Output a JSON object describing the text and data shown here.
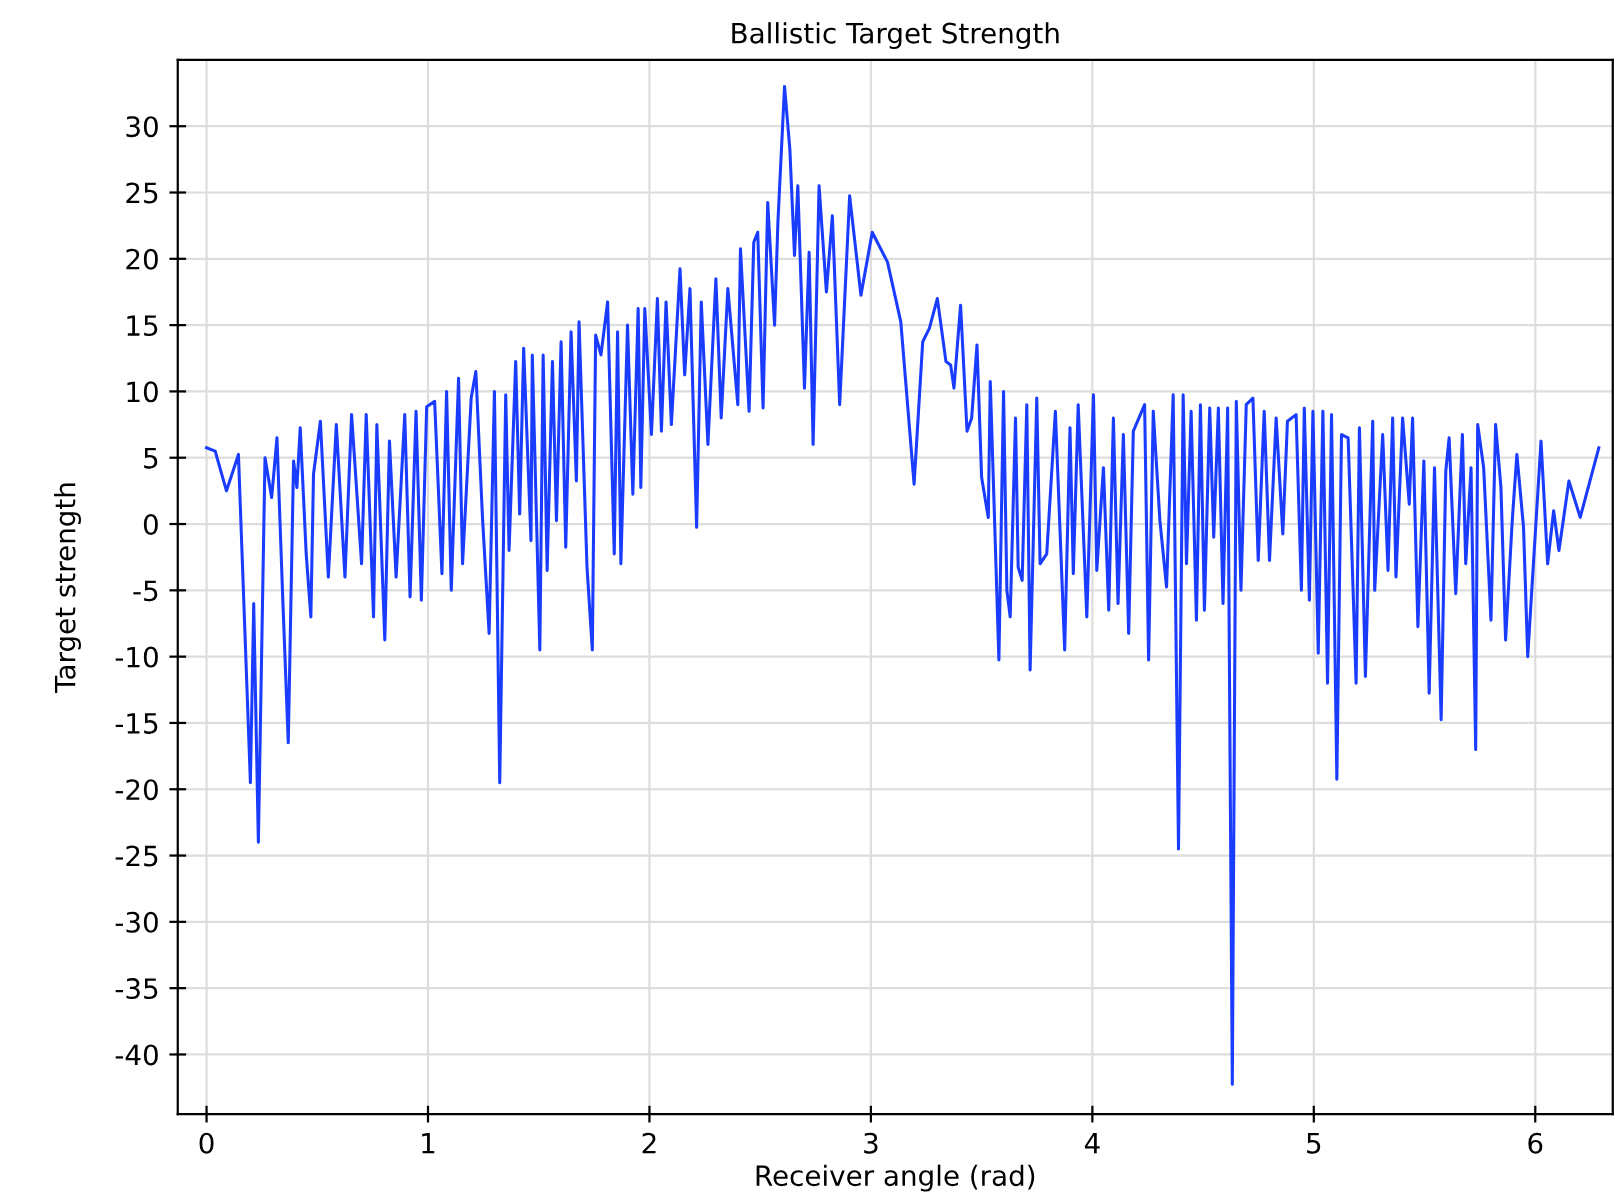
{
  "chart_data": {
    "type": "line",
    "title": "Ballistic Target Strength",
    "xlabel": "Receiver angle (rad)",
    "ylabel": "Target strength",
    "xlim": [
      -0.13,
      6.35
    ],
    "ylim": [
      -44.5,
      35
    ],
    "xticks": [
      0,
      1,
      2,
      3,
      4,
      5,
      6
    ],
    "yticks": [
      -40,
      -35,
      -30,
      -25,
      -20,
      -15,
      -10,
      -5,
      0,
      5,
      10,
      15,
      20,
      25,
      30
    ],
    "grid": true,
    "line_style": "solid",
    "series": [
      {
        "color": "#1a3cff",
        "x": [
          0,
          0.039,
          0.09,
          0.144,
          0.198,
          0.213,
          0.234,
          0.264,
          0.294,
          0.318,
          0.345,
          0.369,
          0.393,
          0.408,
          0.423,
          0.45,
          0.471,
          0.483,
          0.514,
          0.55,
          0.586,
          0.625,
          0.655,
          0.7,
          0.721,
          0.754,
          0.769,
          0.805,
          0.826,
          0.856,
          0.895,
          0.919,
          0.946,
          0.97,
          0.994,
          1.03,
          1.063,
          1.084,
          1.105,
          1.138,
          1.156,
          1.195,
          1.216,
          1.246,
          1.276,
          1.3,
          1.324,
          1.351,
          1.366,
          1.396,
          1.414,
          1.432,
          1.465,
          1.471,
          1.505,
          1.52,
          1.538,
          1.562,
          1.58,
          1.601,
          1.622,
          1.646,
          1.67,
          1.682,
          1.718,
          1.742,
          1.757,
          1.781,
          1.811,
          1.841,
          1.856,
          1.871,
          1.901,
          1.925,
          1.949,
          1.961,
          1.979,
          2.009,
          2.036,
          2.054,
          2.075,
          2.099,
          2.138,
          2.159,
          2.183,
          2.213,
          2.234,
          2.264,
          2.3,
          2.324,
          2.354,
          2.399,
          2.411,
          2.45,
          2.471,
          2.489,
          2.513,
          2.534,
          2.565,
          2.58,
          2.61,
          2.634,
          2.655,
          2.67,
          2.7,
          2.721,
          2.739,
          2.766,
          2.799,
          2.826,
          2.859,
          2.904,
          2.955,
          3.006,
          3.075,
          3.135,
          3.195,
          3.234,
          3.264,
          3.3,
          3.339,
          3.36,
          3.375,
          3.405,
          3.434,
          3.455,
          3.479,
          3.5,
          3.53,
          3.539,
          3.578,
          3.599,
          3.614,
          3.629,
          3.653,
          3.665,
          3.683,
          3.704,
          3.719,
          3.749,
          3.764,
          3.794,
          3.833,
          3.875,
          3.899,
          3.914,
          3.936,
          3.975,
          4.005,
          4.02,
          4.05,
          4.074,
          4.095,
          4.116,
          4.14,
          4.164,
          4.185,
          4.236,
          4.254,
          4.275,
          4.305,
          4.335,
          4.365,
          4.389,
          4.41,
          4.425,
          4.446,
          4.47,
          4.488,
          4.506,
          4.53,
          4.548,
          4.569,
          4.59,
          4.611,
          4.632,
          4.65,
          4.671,
          4.695,
          4.725,
          4.749,
          4.776,
          4.8,
          4.83,
          4.86,
          4.881,
          4.92,
          4.944,
          4.957,
          4.98,
          4.996,
          5.02,
          5.041,
          5.062,
          5.08,
          5.104,
          5.125,
          5.155,
          5.191,
          5.206,
          5.233,
          5.266,
          5.275,
          5.311,
          5.335,
          5.356,
          5.371,
          5.401,
          5.431,
          5.446,
          5.47,
          5.497,
          5.521,
          5.545,
          5.575,
          5.596,
          5.611,
          5.641,
          5.671,
          5.686,
          5.71,
          5.731,
          5.74,
          5.767,
          5.8,
          5.821,
          5.845,
          5.866,
          5.896,
          5.917,
          5.947,
          5.966,
          5.987,
          6.026,
          6.056,
          6.083,
          6.107,
          6.152,
          6.203,
          6.287
        ],
        "values": [
          5.75,
          5.5,
          2.5,
          5.25,
          -19.5,
          -6,
          -24,
          5,
          2,
          6.5,
          -6,
          -16.5,
          4.75,
          2.75,
          7.25,
          -2.25,
          -7,
          3.75,
          7.75,
          -4,
          7.5,
          -4,
          8.25,
          -3,
          8.25,
          -7,
          7.5,
          -8.75,
          6.25,
          -4,
          8.25,
          -5.5,
          8.5,
          -5.75,
          8.85,
          9.25,
          -3.75,
          10,
          -5,
          11,
          -3,
          9.5,
          11.5,
          0.5,
          -8.25,
          10,
          -19.5,
          9.75,
          -2,
          12.25,
          0.75,
          13.25,
          -1.25,
          12.75,
          -9.5,
          12.75,
          -3.5,
          12.25,
          0.25,
          13.75,
          -1.75,
          14.5,
          3.25,
          15.25,
          -3.25,
          -9.5,
          14.25,
          12.75,
          16.75,
          -2.25,
          14.5,
          -3,
          15,
          2.25,
          16.25,
          2.75,
          16.25,
          6.75,
          17,
          7,
          16.75,
          7.5,
          19.25,
          11.25,
          17.75,
          -0.25,
          16.75,
          6,
          18.5,
          8,
          17.75,
          9,
          20.75,
          8.5,
          21.25,
          22,
          8.75,
          24.25,
          15,
          22.75,
          33,
          28.25,
          20.25,
          25.5,
          10.25,
          20.5,
          6,
          25.5,
          17.5,
          23.25,
          9,
          24.75,
          17.25,
          22,
          19.75,
          15.25,
          3,
          13.75,
          14.75,
          17,
          12.25,
          12,
          10.25,
          16.5,
          7,
          8,
          13.5,
          3.5,
          0.5,
          10.75,
          -10.25,
          10,
          -5,
          -7,
          8,
          -3.25,
          -4.25,
          9,
          -11,
          9.5,
          -3,
          -2.25,
          8.5,
          -9.5,
          7.25,
          -3.75,
          9,
          -7,
          9.75,
          -3.5,
          4.25,
          -6.5,
          8,
          -6,
          6.75,
          -8.25,
          7,
          9,
          -10.25,
          8.5,
          0.25,
          -4.75,
          9.75,
          -24.5,
          9.75,
          -3,
          8.5,
          -7.25,
          9,
          -6.5,
          8.75,
          -1,
          8.75,
          -6,
          8.75,
          -42.25,
          9.25,
          -5,
          9,
          9.5,
          -2.75,
          8.5,
          -2.75,
          8,
          -0.75,
          7.75,
          8.25,
          -5,
          8.75,
          -5.75,
          8.5,
          -9.75,
          8.5,
          -12,
          8.25,
          -19.25,
          6.75,
          6.5,
          -12,
          7.25,
          -11.5,
          7.75,
          -5,
          6.75,
          -3.5,
          8,
          -4,
          8,
          1.5,
          8,
          -7.75,
          4.75,
          -12.75,
          4.25,
          -14.75,
          4,
          6.5,
          -5.25,
          6.75,
          -3,
          4.25,
          -17,
          7.5,
          4.25,
          -7.25,
          7.5,
          2.75,
          -8.75,
          0.25,
          5.25,
          -0.25,
          -10,
          -4.25,
          6.25,
          -3,
          1,
          -2,
          3.25,
          0.5,
          5.75
        ]
      }
    ]
  }
}
